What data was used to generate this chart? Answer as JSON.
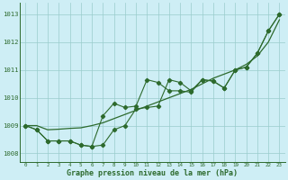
{
  "title": "Graphe pression niveau de la mer (hPa)",
  "bg_color": "#ceeef5",
  "grid_color": "#99cccc",
  "line_color": "#2d6a2d",
  "ylim": [
    1007.7,
    1013.4
  ],
  "yticks": [
    1008,
    1009,
    1010,
    1011,
    1012,
    1013
  ],
  "x_labels": [
    "0",
    "1",
    "2",
    "3",
    "4",
    "5",
    "6",
    "7",
    "8",
    "9",
    "10",
    "11",
    "12",
    "13",
    "14",
    "15",
    "16",
    "17",
    "18",
    "19",
    "20",
    "21",
    "22",
    "23"
  ],
  "smooth": [
    1009.0,
    1009.0,
    1008.85,
    1008.87,
    1008.9,
    1008.92,
    1009.0,
    1009.1,
    1009.25,
    1009.4,
    1009.55,
    1009.7,
    1009.85,
    1010.0,
    1010.15,
    1010.3,
    1010.5,
    1010.7,
    1010.85,
    1011.0,
    1011.2,
    1011.5,
    1012.0,
    1012.8
  ],
  "jagged1": [
    1009.0,
    1008.85,
    1008.45,
    1008.45,
    1008.45,
    1008.3,
    1008.25,
    1008.3,
    1008.85,
    1009.0,
    1009.6,
    1009.65,
    1009.7,
    1010.65,
    1010.55,
    1010.25,
    1010.65,
    1010.6,
    1010.35,
    1011.0,
    1011.1,
    1011.6,
    1012.4,
    1013.0
  ],
  "jagged2": [
    1009.0,
    1008.85,
    1008.45,
    1008.45,
    1008.45,
    1008.3,
    1008.25,
    1009.35,
    1009.8,
    1009.65,
    1009.7,
    1010.65,
    1010.55,
    1010.25,
    1010.25,
    1010.2,
    1010.65,
    1010.6,
    1010.35,
    1011.0,
    1011.1,
    1011.6,
    1012.4,
    1013.0
  ]
}
